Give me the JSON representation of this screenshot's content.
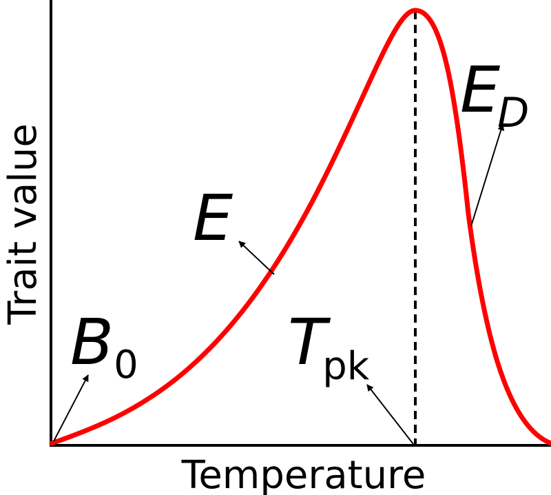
{
  "diagram": {
    "axes": {
      "x_label": "Temperature",
      "y_label": "Trait value"
    },
    "curve": {
      "color": "#ff0000",
      "shape": "unimodal, left-skewed thermal performance curve"
    },
    "peak_line_style": "dashed",
    "parameters": [
      {
        "id": "B0",
        "symbol": "B",
        "subscript": "0"
      },
      {
        "id": "E",
        "symbol": "E",
        "subscript": ""
      },
      {
        "id": "Tpk",
        "symbol": "T",
        "subscript": "pk"
      },
      {
        "id": "ED",
        "symbol": "E",
        "subscript": "D"
      }
    ]
  }
}
